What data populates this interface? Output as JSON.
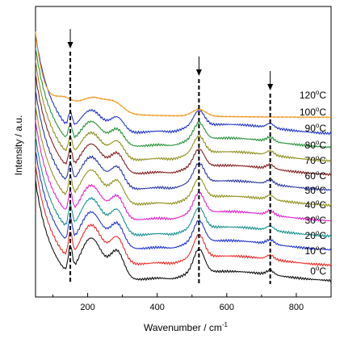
{
  "chart_data": {
    "type": "line",
    "xlabel": "Wavenumber / cm",
    "xlabel_sup": "-1",
    "ylabel": "Intensity / a.u.",
    "xlim": [
      50,
      900
    ],
    "x_ticks": [
      "200",
      "400",
      "600",
      "800"
    ],
    "x_tick_values": [
      200,
      400,
      600,
      800
    ],
    "y_ticks_shown": false,
    "marker_positions": [
      150,
      520,
      725
    ],
    "series": [
      {
        "name": "0°C",
        "label": [
          "0",
          "o",
          "C"
        ],
        "color": "#000000",
        "peaks": [
          0.9,
          1.3,
          0.65,
          1.0
        ],
        "baseline_at_800": 0.02
      },
      {
        "name": "10°C",
        "label": [
          "10",
          "o",
          "C"
        ],
        "color": "#e8201d",
        "peaks": [
          0.85,
          1.25,
          0.65,
          0.95
        ],
        "baseline_at_800": 0.11
      },
      {
        "name": "20°C",
        "label": [
          "20",
          "o",
          "C"
        ],
        "color": "#1228c6",
        "peaks": [
          0.8,
          1.2,
          0.6,
          0.9
        ],
        "baseline_at_800": 0.2
      },
      {
        "name": "30°C",
        "label": [
          "30",
          "o",
          "C"
        ],
        "color": "#0a8a8a",
        "peaks": [
          0.8,
          1.15,
          0.6,
          0.88
        ],
        "baseline_at_800": 0.28
      },
      {
        "name": "40°C",
        "label": [
          "40",
          "o",
          "C"
        ],
        "color": "#e012c8",
        "peaks": [
          0.75,
          1.1,
          0.55,
          0.85
        ],
        "baseline_at_800": 0.37
      },
      {
        "name": "50°C",
        "label": [
          "50",
          "o",
          "C"
        ],
        "color": "#8a8a10",
        "peaks": [
          0.75,
          1.05,
          0.55,
          0.82
        ],
        "baseline_at_800": 0.46
      },
      {
        "name": "60°C",
        "label": [
          "60",
          "o",
          "C"
        ],
        "color": "#1a2a9a",
        "peaks": [
          0.7,
          1.0,
          0.5,
          0.8
        ],
        "baseline_at_800": 0.55
      },
      {
        "name": "70°C",
        "label": [
          "70",
          "o",
          "C"
        ],
        "color": "#7a1010",
        "peaks": [
          0.65,
          0.95,
          0.45,
          0.75
        ],
        "baseline_at_800": 0.64
      },
      {
        "name": "80°C",
        "label": [
          "80",
          "o",
          "C"
        ],
        "color": "#8a8a10",
        "peaks": [
          0.6,
          0.9,
          0.4,
          0.72
        ],
        "baseline_at_800": 0.72
      },
      {
        "name": "90°C",
        "label": [
          "90",
          "o",
          "C"
        ],
        "color": "#1a8a2a",
        "peaks": [
          0.55,
          0.85,
          0.35,
          0.7
        ],
        "baseline_at_800": 0.8
      },
      {
        "name": "100°C",
        "label": [
          "100",
          "o",
          "C"
        ],
        "color": "#1228c6",
        "peaks": [
          0.5,
          0.8,
          0.3,
          0.65
        ],
        "baseline_at_800": 0.88
      },
      {
        "name": "120°C",
        "label": [
          "120",
          "o",
          "C"
        ],
        "color": "#f29419",
        "peaks": [
          0.35,
          0.55,
          0.15,
          0.35
        ],
        "baseline_at_800": 0.98
      }
    ]
  }
}
